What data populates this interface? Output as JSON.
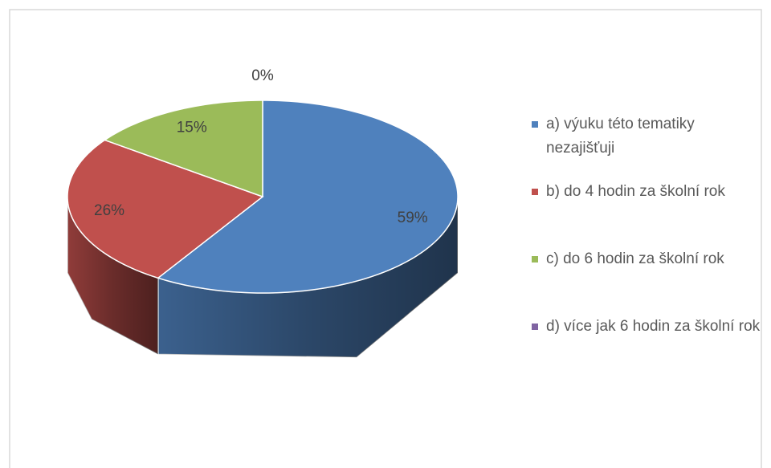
{
  "chart_data": {
    "type": "pie",
    "categories": [
      "a) výuku této tematiky nezajišťuji",
      "b) do 4 hodin za školní rok",
      "c) do 6 hodin za školní rok",
      "d) více jak 6 hodin za školní rok"
    ],
    "values": [
      59,
      26,
      15,
      0
    ],
    "value_labels": [
      "59%",
      "26%",
      "15%",
      "0%"
    ],
    "colors": [
      "#4f81bd",
      "#c0504d",
      "#9bbb59",
      "#8064a2"
    ],
    "legend": "right"
  }
}
